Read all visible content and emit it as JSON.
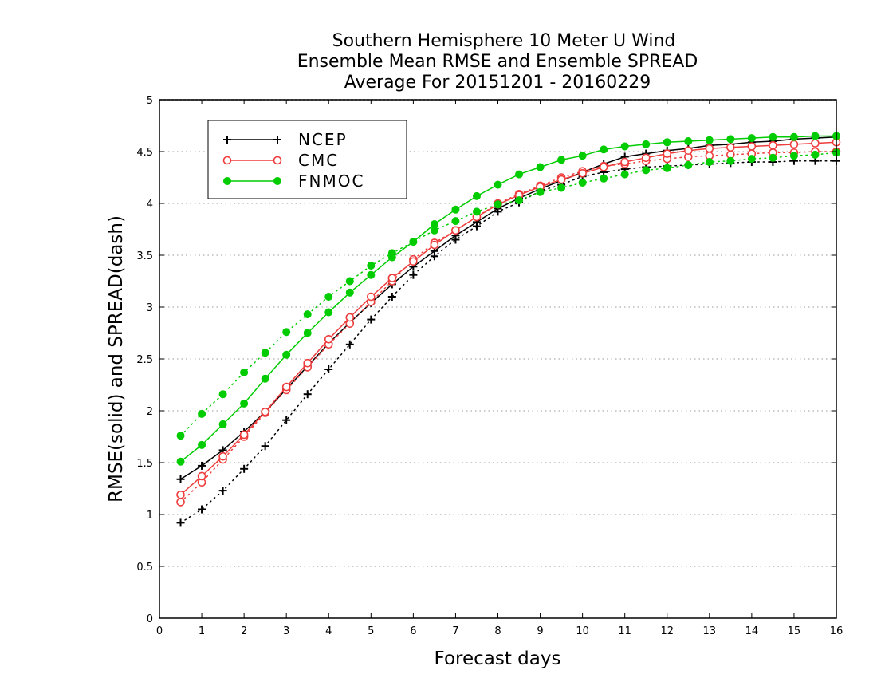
{
  "chart_data": {
    "type": "line",
    "title": [
      "Southern Hemisphere 10 Meter U Wind",
      "Ensemble Mean RMSE and Ensemble SPREAD",
      "Average For 20151201 - 20160229"
    ],
    "xlabel": "Forecast days",
    "ylabel": "RMSE(solid) and SPREAD(dash)",
    "xlim": [
      0,
      16
    ],
    "ylim": [
      0,
      5
    ],
    "xticks": [
      "0",
      "1",
      "2",
      "3",
      "4",
      "5",
      "6",
      "7",
      "8",
      "9",
      "10",
      "11",
      "12",
      "13",
      "14",
      "15",
      "16"
    ],
    "yticks": [
      "0",
      "0.5",
      "1",
      "1.5",
      "2",
      "2.5",
      "3",
      "3.5",
      "4",
      "4.5",
      "5"
    ],
    "grid": true,
    "legend_position": "top-left",
    "x": [
      0.5,
      1,
      1.5,
      2,
      2.5,
      3,
      3.5,
      4,
      4.5,
      5,
      5.5,
      6,
      6.5,
      7,
      7.5,
      8,
      8.5,
      9,
      9.5,
      10,
      10.5,
      11,
      11.5,
      12,
      12.5,
      13,
      13.5,
      14,
      14.5,
      15,
      15.5,
      16
    ],
    "series": [
      {
        "name": "NCEP",
        "color": "#000000",
        "marker": "plus",
        "rmse": [
          1.34,
          1.47,
          1.62,
          1.8,
          1.99,
          2.21,
          2.43,
          2.65,
          2.85,
          3.04,
          3.22,
          3.39,
          3.54,
          3.69,
          3.82,
          3.95,
          4.05,
          4.14,
          4.22,
          4.3,
          4.38,
          4.45,
          4.48,
          4.51,
          4.53,
          4.56,
          4.57,
          4.59,
          4.6,
          4.62,
          4.63,
          4.64
        ],
        "spread": [
          0.92,
          1.05,
          1.23,
          1.44,
          1.66,
          1.91,
          2.16,
          2.4,
          2.64,
          2.88,
          3.1,
          3.31,
          3.49,
          3.65,
          3.78,
          3.92,
          4.01,
          4.12,
          4.18,
          4.26,
          4.3,
          4.33,
          4.35,
          4.36,
          4.37,
          4.38,
          4.39,
          4.4,
          4.4,
          4.41,
          4.41,
          4.41
        ]
      },
      {
        "name": "CMC",
        "color": "#ee3b3b",
        "marker": "circle-open",
        "rmse": [
          1.19,
          1.37,
          1.56,
          1.77,
          1.99,
          2.23,
          2.46,
          2.69,
          2.9,
          3.1,
          3.28,
          3.44,
          3.6,
          3.74,
          3.87,
          3.99,
          4.08,
          4.16,
          4.23,
          4.29,
          4.35,
          4.4,
          4.44,
          4.48,
          4.51,
          4.53,
          4.54,
          4.55,
          4.56,
          4.57,
          4.58,
          4.59
        ],
        "spread": [
          1.12,
          1.31,
          1.53,
          1.75,
          1.98,
          2.2,
          2.42,
          2.64,
          2.84,
          3.05,
          3.25,
          3.46,
          3.62,
          3.74,
          3.87,
          4.0,
          4.09,
          4.17,
          4.25,
          4.31,
          4.36,
          4.38,
          4.41,
          4.43,
          4.45,
          4.46,
          4.47,
          4.48,
          4.49,
          4.49,
          4.5,
          4.5
        ]
      },
      {
        "name": "FNMOC",
        "color": "#00cc00",
        "marker": "circle-filled",
        "rmse": [
          1.51,
          1.67,
          1.87,
          2.07,
          2.31,
          2.54,
          2.75,
          2.95,
          3.14,
          3.31,
          3.48,
          3.63,
          3.8,
          3.94,
          4.07,
          4.18,
          4.28,
          4.35,
          4.42,
          4.46,
          4.52,
          4.55,
          4.57,
          4.59,
          4.6,
          4.61,
          4.62,
          4.63,
          4.64,
          4.64,
          4.65,
          4.65
        ],
        "spread": [
          1.76,
          1.97,
          2.16,
          2.37,
          2.56,
          2.76,
          2.93,
          3.1,
          3.25,
          3.4,
          3.52,
          3.63,
          3.74,
          3.83,
          3.92,
          3.99,
          4.03,
          4.11,
          4.15,
          4.2,
          4.24,
          4.28,
          4.32,
          4.34,
          4.37,
          4.4,
          4.41,
          4.43,
          4.44,
          4.46,
          4.47,
          4.49
        ]
      }
    ]
  }
}
